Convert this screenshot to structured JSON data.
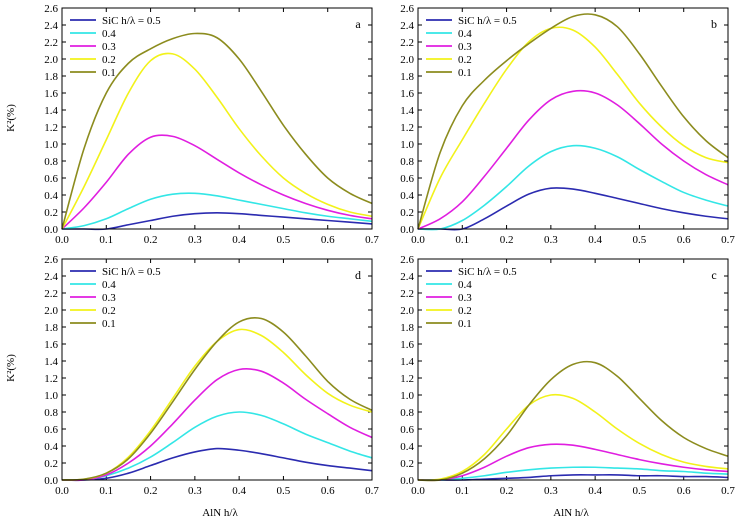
{
  "ylabel": "K²(%)",
  "xlabel": "AlN h/λ",
  "legend_title_prefix": "SiC h/λ = ",
  "series_style": [
    {
      "name": "0.5",
      "color": "#2b2bb0"
    },
    {
      "name": "0.4",
      "color": "#33e6e6"
    },
    {
      "name": "0.3",
      "color": "#e01ee0"
    },
    {
      "name": "0.2",
      "color": "#f2f21a"
    },
    {
      "name": "0.1",
      "color": "#8c8c1e"
    }
  ],
  "chart_data": [
    {
      "type": "line",
      "panel": "a",
      "xlim": [
        0,
        0.7
      ],
      "ylim": [
        0,
        2.6
      ],
      "xticks": [
        0.0,
        0.1,
        0.2,
        0.3,
        0.4,
        0.5,
        0.6,
        0.7
      ],
      "yticks": [
        0.0,
        0.2,
        0.4,
        0.6,
        0.8,
        1.0,
        1.2,
        1.4,
        1.6,
        1.8,
        2.0,
        2.2,
        2.4,
        2.6
      ],
      "grid": false,
      "legend": "top-left",
      "x": [
        0.0,
        0.05,
        0.1,
        0.15,
        0.2,
        0.25,
        0.3,
        0.35,
        0.4,
        0.45,
        0.5,
        0.55,
        0.6,
        0.65,
        0.7
      ],
      "series": [
        {
          "name": "0.5",
          "values": [
            0.0,
            0.0,
            0.0,
            0.05,
            0.1,
            0.15,
            0.18,
            0.19,
            0.18,
            0.16,
            0.14,
            0.12,
            0.1,
            0.08,
            0.06
          ]
        },
        {
          "name": "0.4",
          "values": [
            0.0,
            0.04,
            0.12,
            0.24,
            0.35,
            0.41,
            0.42,
            0.39,
            0.34,
            0.29,
            0.24,
            0.19,
            0.15,
            0.12,
            0.09
          ]
        },
        {
          "name": "0.3",
          "values": [
            0.0,
            0.25,
            0.55,
            0.88,
            1.08,
            1.09,
            0.98,
            0.82,
            0.66,
            0.52,
            0.4,
            0.3,
            0.22,
            0.16,
            0.12
          ]
        },
        {
          "name": "0.2",
          "values": [
            0.0,
            0.5,
            1.05,
            1.6,
            1.98,
            2.06,
            1.88,
            1.55,
            1.18,
            0.86,
            0.6,
            0.42,
            0.29,
            0.2,
            0.15
          ]
        },
        {
          "name": "0.1",
          "values": [
            0.0,
            0.95,
            1.6,
            1.95,
            2.12,
            2.24,
            2.3,
            2.25,
            2.0,
            1.62,
            1.22,
            0.88,
            0.6,
            0.42,
            0.3
          ]
        }
      ]
    },
    {
      "type": "line",
      "panel": "b",
      "xlim": [
        0,
        0.7
      ],
      "ylim": [
        0,
        2.6
      ],
      "xticks": [
        0.0,
        0.1,
        0.2,
        0.3,
        0.4,
        0.5,
        0.6,
        0.7
      ],
      "yticks": [
        0.0,
        0.2,
        0.4,
        0.6,
        0.8,
        1.0,
        1.2,
        1.4,
        1.6,
        1.8,
        2.0,
        2.2,
        2.4,
        2.6
      ],
      "grid": false,
      "legend": "top-left",
      "x": [
        0.0,
        0.05,
        0.1,
        0.15,
        0.2,
        0.25,
        0.3,
        0.35,
        0.4,
        0.45,
        0.5,
        0.55,
        0.6,
        0.65,
        0.7
      ],
      "series": [
        {
          "name": "0.5",
          "values": [
            0.0,
            0.0,
            0.0,
            0.12,
            0.27,
            0.41,
            0.48,
            0.47,
            0.42,
            0.36,
            0.3,
            0.24,
            0.19,
            0.15,
            0.12
          ]
        },
        {
          "name": "0.4",
          "values": [
            0.0,
            0.0,
            0.1,
            0.28,
            0.5,
            0.74,
            0.91,
            0.98,
            0.95,
            0.85,
            0.7,
            0.56,
            0.43,
            0.34,
            0.27
          ]
        },
        {
          "name": "0.3",
          "values": [
            0.0,
            0.12,
            0.32,
            0.62,
            0.95,
            1.28,
            1.52,
            1.62,
            1.6,
            1.46,
            1.24,
            1.0,
            0.8,
            0.64,
            0.52
          ]
        },
        {
          "name": "0.2",
          "values": [
            0.0,
            0.6,
            1.05,
            1.48,
            1.88,
            2.2,
            2.36,
            2.34,
            2.14,
            1.82,
            1.48,
            1.2,
            0.98,
            0.84,
            0.78
          ]
        },
        {
          "name": "0.1",
          "values": [
            0.0,
            0.9,
            1.45,
            1.75,
            1.98,
            2.18,
            2.36,
            2.5,
            2.52,
            2.38,
            2.06,
            1.68,
            1.32,
            1.04,
            0.84
          ]
        }
      ]
    },
    {
      "type": "line",
      "panel": "d",
      "xlim": [
        0,
        0.7
      ],
      "ylim": [
        0,
        2.6
      ],
      "xticks": [
        0.0,
        0.1,
        0.2,
        0.3,
        0.4,
        0.5,
        0.6,
        0.7
      ],
      "yticks": [
        0.0,
        0.2,
        0.4,
        0.6,
        0.8,
        1.0,
        1.2,
        1.4,
        1.6,
        1.8,
        2.0,
        2.2,
        2.4,
        2.6
      ],
      "grid": false,
      "legend": "top-left",
      "x": [
        0.0,
        0.05,
        0.1,
        0.15,
        0.2,
        0.25,
        0.3,
        0.35,
        0.4,
        0.45,
        0.5,
        0.55,
        0.6,
        0.65,
        0.7
      ],
      "series": [
        {
          "name": "0.5",
          "values": [
            0.0,
            0.0,
            0.02,
            0.08,
            0.17,
            0.26,
            0.33,
            0.37,
            0.35,
            0.31,
            0.26,
            0.21,
            0.17,
            0.14,
            0.11
          ]
        },
        {
          "name": "0.4",
          "values": [
            0.0,
            0.0,
            0.05,
            0.14,
            0.27,
            0.44,
            0.62,
            0.75,
            0.8,
            0.76,
            0.66,
            0.54,
            0.44,
            0.34,
            0.26
          ]
        },
        {
          "name": "0.3",
          "values": [
            0.0,
            0.0,
            0.06,
            0.2,
            0.4,
            0.66,
            0.94,
            1.18,
            1.3,
            1.28,
            1.14,
            0.95,
            0.78,
            0.62,
            0.5
          ]
        },
        {
          "name": "0.2",
          "values": [
            0.0,
            0.01,
            0.08,
            0.27,
            0.58,
            0.96,
            1.34,
            1.63,
            1.77,
            1.7,
            1.5,
            1.24,
            1.02,
            0.88,
            0.8
          ]
        },
        {
          "name": "0.1",
          "values": [
            0.0,
            0.01,
            0.08,
            0.25,
            0.55,
            0.92,
            1.3,
            1.63,
            1.86,
            1.9,
            1.74,
            1.46,
            1.16,
            0.95,
            0.82
          ]
        }
      ]
    },
    {
      "type": "line",
      "panel": "c",
      "xlim": [
        0,
        0.7
      ],
      "ylim": [
        0,
        2.6
      ],
      "xticks": [
        0.0,
        0.1,
        0.2,
        0.3,
        0.4,
        0.5,
        0.6,
        0.7
      ],
      "yticks": [
        0.0,
        0.2,
        0.4,
        0.6,
        0.8,
        1.0,
        1.2,
        1.4,
        1.6,
        1.8,
        2.0,
        2.2,
        2.4,
        2.6
      ],
      "grid": false,
      "legend": "top-left",
      "x": [
        0.0,
        0.05,
        0.1,
        0.15,
        0.2,
        0.25,
        0.3,
        0.35,
        0.4,
        0.45,
        0.5,
        0.55,
        0.6,
        0.65,
        0.7
      ],
      "series": [
        {
          "name": "0.5",
          "values": [
            0.0,
            0.0,
            0.0,
            0.01,
            0.02,
            0.03,
            0.05,
            0.06,
            0.06,
            0.06,
            0.05,
            0.05,
            0.04,
            0.04,
            0.03
          ]
        },
        {
          "name": "0.4",
          "values": [
            0.0,
            0.0,
            0.02,
            0.05,
            0.09,
            0.12,
            0.14,
            0.15,
            0.15,
            0.14,
            0.13,
            0.11,
            0.1,
            0.08,
            0.07
          ]
        },
        {
          "name": "0.3",
          "values": [
            0.0,
            0.0,
            0.05,
            0.15,
            0.28,
            0.38,
            0.42,
            0.41,
            0.36,
            0.3,
            0.24,
            0.19,
            0.15,
            0.12,
            0.1
          ]
        },
        {
          "name": "0.2",
          "values": [
            0.0,
            0.01,
            0.1,
            0.3,
            0.6,
            0.88,
            1.0,
            0.96,
            0.8,
            0.6,
            0.43,
            0.3,
            0.21,
            0.16,
            0.13
          ]
        },
        {
          "name": "0.1",
          "values": [
            0.0,
            0.0,
            0.08,
            0.25,
            0.52,
            0.88,
            1.18,
            1.36,
            1.38,
            1.22,
            0.96,
            0.7,
            0.5,
            0.37,
            0.28
          ]
        }
      ]
    }
  ]
}
